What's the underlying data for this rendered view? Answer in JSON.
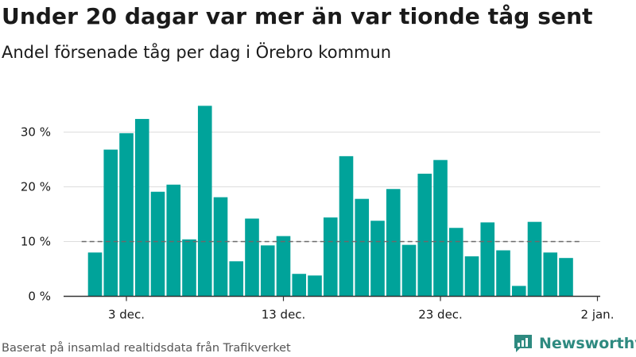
{
  "title": "Under 20 dagar var mer än var tionde tåg sent",
  "subtitle": "Andel försenade tåg per dag i Örebro kommun",
  "source": "Baserat på insamlad realtidsdata från Trafikverket",
  "brand": {
    "name": "Newsworthy",
    "icon": "newsworthy-logo-icon"
  },
  "colors": {
    "bar": "#00a39a",
    "reference_line": "#6b6b6b",
    "grid": "#dddddd",
    "axis": "#333333",
    "brand": "#2e8a80"
  },
  "chart_data": {
    "type": "bar",
    "x": [
      "2023-12-01",
      "2023-12-02",
      "2023-12-03",
      "2023-12-04",
      "2023-12-05",
      "2023-12-06",
      "2023-12-07",
      "2023-12-08",
      "2023-12-09",
      "2023-12-10",
      "2023-12-11",
      "2023-12-12",
      "2023-12-13",
      "2023-12-14",
      "2023-12-15",
      "2023-12-16",
      "2023-12-17",
      "2023-12-18",
      "2023-12-19",
      "2023-12-20",
      "2023-12-21",
      "2023-12-22",
      "2023-12-23",
      "2023-12-24",
      "2023-12-25",
      "2023-12-26",
      "2023-12-27",
      "2023-12-28",
      "2023-12-29",
      "2023-12-30",
      "2023-12-31"
    ],
    "values": [
      8.0,
      26.8,
      29.8,
      32.4,
      19.1,
      20.4,
      10.4,
      34.8,
      18.1,
      6.4,
      14.2,
      9.3,
      11.0,
      4.1,
      3.8,
      14.4,
      25.6,
      17.8,
      13.8,
      19.6,
      9.4,
      22.4,
      24.9,
      12.5,
      7.3,
      13.5,
      8.4,
      1.9,
      13.6,
      8.0,
      7.0
    ],
    "unit": "%",
    "ylim": [
      0,
      35
    ],
    "yticks": [
      0,
      10,
      20,
      30
    ],
    "ytick_labels": [
      "0 %",
      "10 %",
      "20 %",
      "30 %"
    ],
    "xticks": [
      "2023-12-03",
      "2023-12-13",
      "2023-12-23",
      "2024-01-02"
    ],
    "xtick_labels": [
      "3 dec.",
      "13 dec.",
      "23 dec.",
      "2 jan."
    ],
    "reference_line": {
      "value": 10,
      "style": "dashed"
    },
    "grid": true,
    "legend": "none"
  }
}
